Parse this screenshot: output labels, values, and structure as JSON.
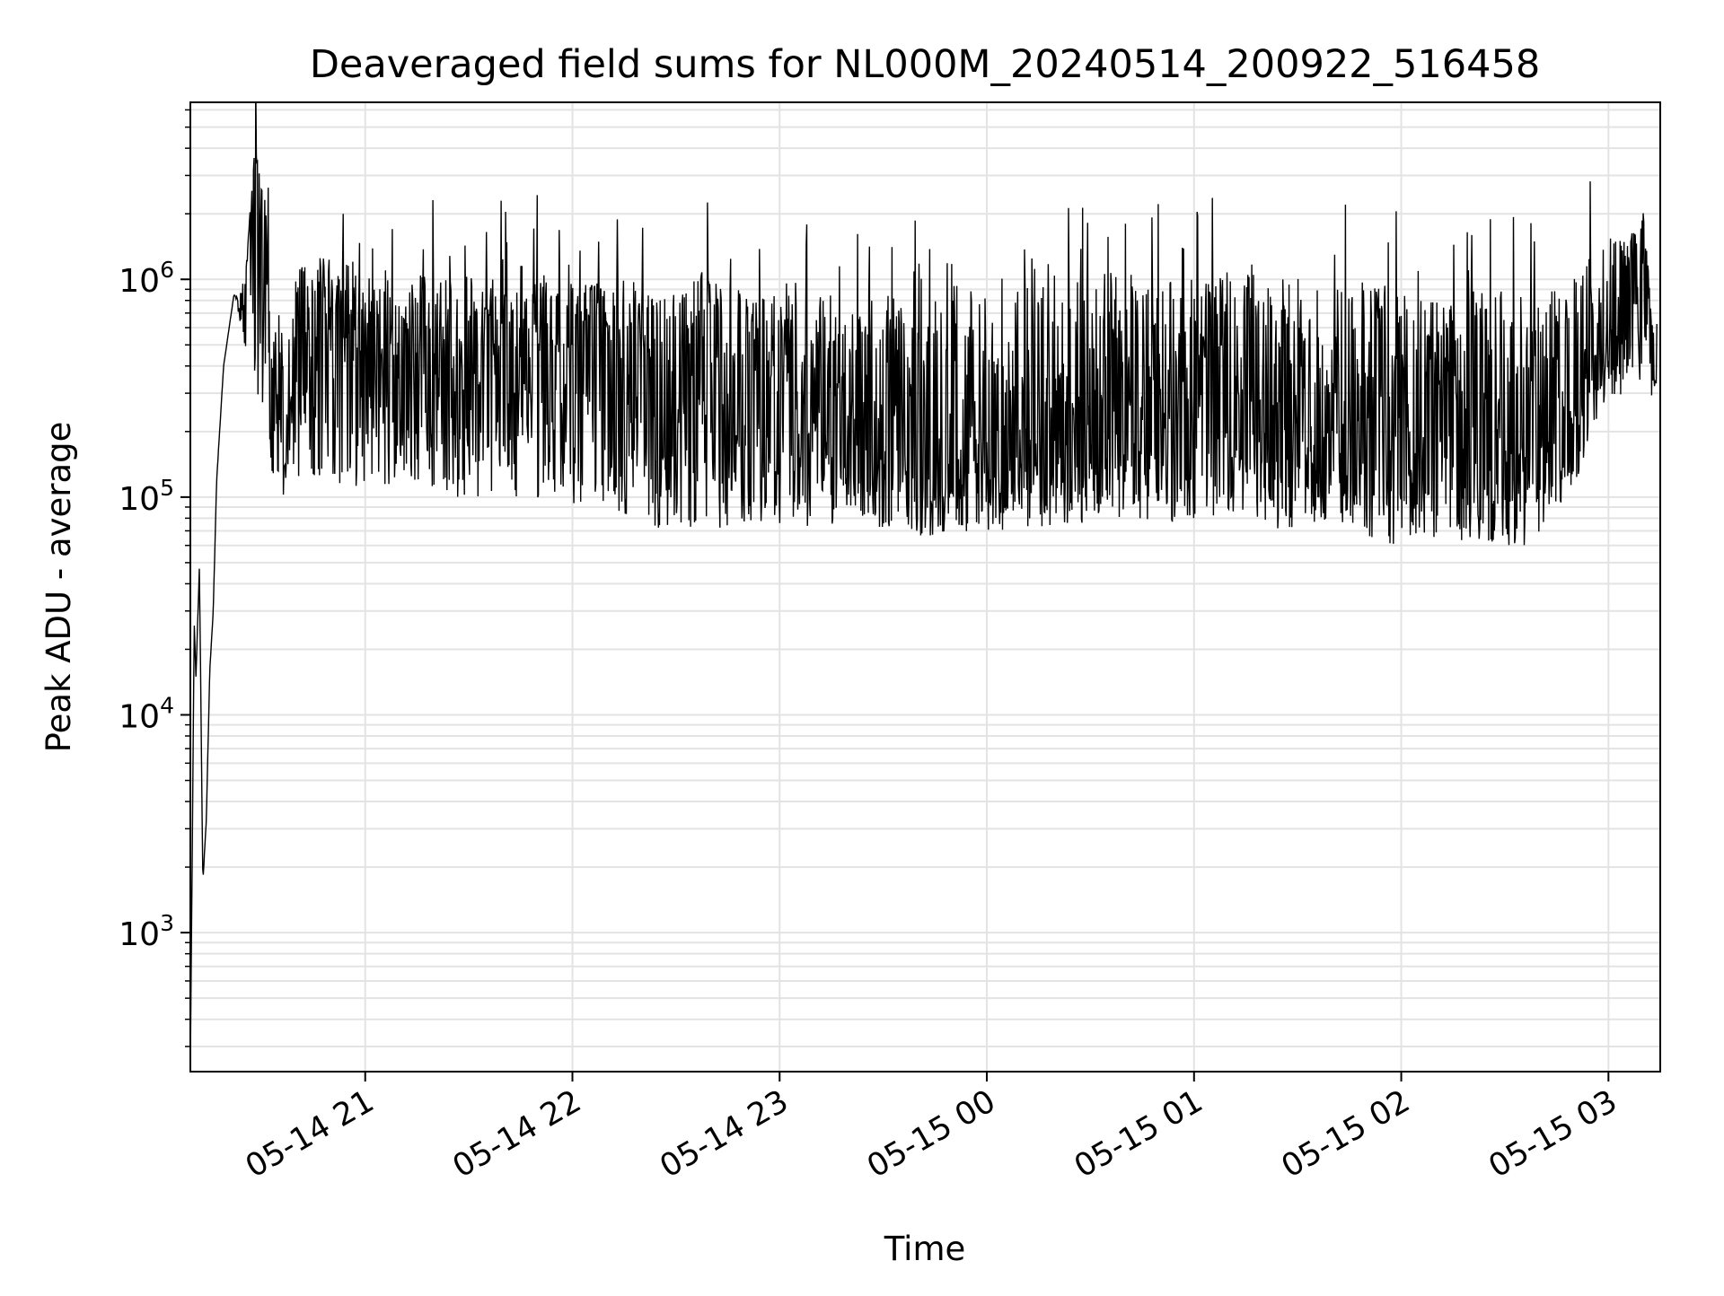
{
  "chart_data": {
    "type": "line",
    "title": "Deaveraged field sums for NL000M_20240514_200922_516458",
    "xlabel": "Time",
    "ylabel": "Peak ADU - average",
    "yscale": "log",
    "ylim": [
      230,
      6500000
    ],
    "xlim": [
      "2024-05-14 20:09:22",
      "2024-05-15 03:15:00"
    ],
    "grid": true,
    "line_color": "#000000",
    "x_tick_labels": [
      "05-14 21",
      "05-14 22",
      "05-14 23",
      "05-15 00",
      "05-15 01",
      "05-15 02",
      "05-15 03"
    ],
    "x_ticks": [
      "2024-05-14 21:00",
      "2024-05-14 22:00",
      "2024-05-14 23:00",
      "2024-05-15 00:00",
      "2024-05-15 01:00",
      "2024-05-15 02:00",
      "2024-05-15 03:00"
    ],
    "y_tick_labels": [
      {
        "base": "10",
        "exp": "3",
        "value": 1000
      },
      {
        "base": "10",
        "exp": "4",
        "value": 10000
      },
      {
        "base": "10",
        "exp": "5",
        "value": 100000
      },
      {
        "base": "10",
        "exp": "6",
        "value": 1000000
      }
    ],
    "series": [
      {
        "x": [
          "2024-05-14 20:09:22",
          "2024-05-14 20:10:30",
          "2024-05-14 20:11:00",
          "2024-05-14 20:12:00",
          "2024-05-14 20:13:00",
          "2024-05-14 20:14:00",
          "2024-05-14 20:15:00",
          "2024-05-14 20:16:00",
          "2024-05-14 20:17:00",
          "2024-05-14 20:19:00",
          "2024-05-14 20:22:00",
          "2024-05-14 20:25:00",
          "2024-05-14 20:28:00",
          "2024-05-14 20:31:00",
          "2024-05-14 20:33:00",
          "2024-05-14 20:35:00",
          "2024-05-14 20:38:00",
          "2024-05-14 20:40:00",
          "2024-05-14 20:41:00",
          "2024-05-14 20:42:00",
          "2024-05-14 20:45:00",
          "2024-05-14 20:48:00",
          "2024-05-14 20:50:00",
          "2024-05-14 20:52:00",
          "2024-05-14 20:55:00",
          "2024-05-14 20:58:00",
          "2024-05-14 21:05:00",
          "2024-05-14 21:15:00",
          "2024-05-14 21:25:00",
          "2024-05-14 21:35:00",
          "2024-05-14 21:45:00",
          "2024-05-14 21:55:00",
          "2024-05-14 22:05:00",
          "2024-05-14 22:15:00",
          "2024-05-14 22:25:00",
          "2024-05-14 22:40:00",
          "2024-05-14 22:55:00",
          "2024-05-14 23:10:00",
          "2024-05-14 23:25:00",
          "2024-05-14 23:40:00",
          "2024-05-14 23:55:00",
          "2024-05-15 00:10:00",
          "2024-05-15 00:25:00",
          "2024-05-15 00:40:00",
          "2024-05-15 00:55:00",
          "2024-05-15 01:10:00",
          "2024-05-15 01:25:00",
          "2024-05-15 01:40:00",
          "2024-05-15 01:55:00",
          "2024-05-15 02:10:00",
          "2024-05-15 02:25:00",
          "2024-05-15 02:40:00",
          "2024-05-15 02:55:00",
          "2024-05-15 03:00:00",
          "2024-05-15 03:05:00",
          "2024-05-15 03:10:00",
          "2024-05-15 03:14:00"
        ],
        "y": [
          240,
          26000,
          15000,
          48000,
          1700,
          3300,
          16000,
          30000,
          120000,
          400000,
          850000,
          750000,
          3800000,
          1900000,
          180000,
          380000,
          160000,
          560000,
          380000,
          720000,
          290000,
          560000,
          420000,
          480000,
          410000,
          620000,
          350000,
          560000,
          300000,
          520000,
          410000,
          380000,
          620000,
          440000,
          330000,
          470000,
          350000,
          260000,
          200000,
          150000,
          170000,
          160000,
          180000,
          220000,
          200000,
          230000,
          180000,
          220000,
          170000,
          180000,
          160000,
          220000,
          350000,
          500000,
          900000,
          1700000,
          300000
        ],
        "band_upper": [
          240,
          26000,
          15000,
          48000,
          1700,
          3300,
          16000,
          30000,
          120000,
          400000,
          850000,
          900000,
          4000000,
          2400000,
          700000,
          800000,
          650000,
          1000000,
          1200000,
          1300000,
          1200000,
          1300000,
          1250000,
          1300000,
          1250000,
          1200000,
          1000000,
          1100000,
          1000000,
          1100000,
          1200000,
          1000000,
          950000,
          1000000,
          900000,
          1100000,
          900000,
          850000,
          900000,
          850000,
          1000000,
          1100000,
          1050000,
          1100000,
          1000000,
          1100000,
          1000000,
          1050000,
          1000000,
          900000,
          900000,
          900000,
          1300000,
          1800000,
          1500000,
          2100000,
          400000
        ],
        "band_lower": [
          240,
          26000,
          15000,
          48000,
          1700,
          3300,
          16000,
          30000,
          120000,
          400000,
          850000,
          500000,
          300000,
          200000,
          120000,
          110000,
          90000,
          150000,
          110000,
          130000,
          110000,
          120000,
          110000,
          100000,
          120000,
          100000,
          110000,
          110000,
          100000,
          100000,
          90000,
          90000,
          90000,
          80000,
          70000,
          70000,
          75000,
          70000,
          75000,
          65000,
          70000,
          70000,
          75000,
          80000,
          75000,
          85000,
          70000,
          80000,
          60000,
          65000,
          60000,
          60000,
          150000,
          300000,
          250000,
          350000,
          250000
        ]
      }
    ]
  }
}
